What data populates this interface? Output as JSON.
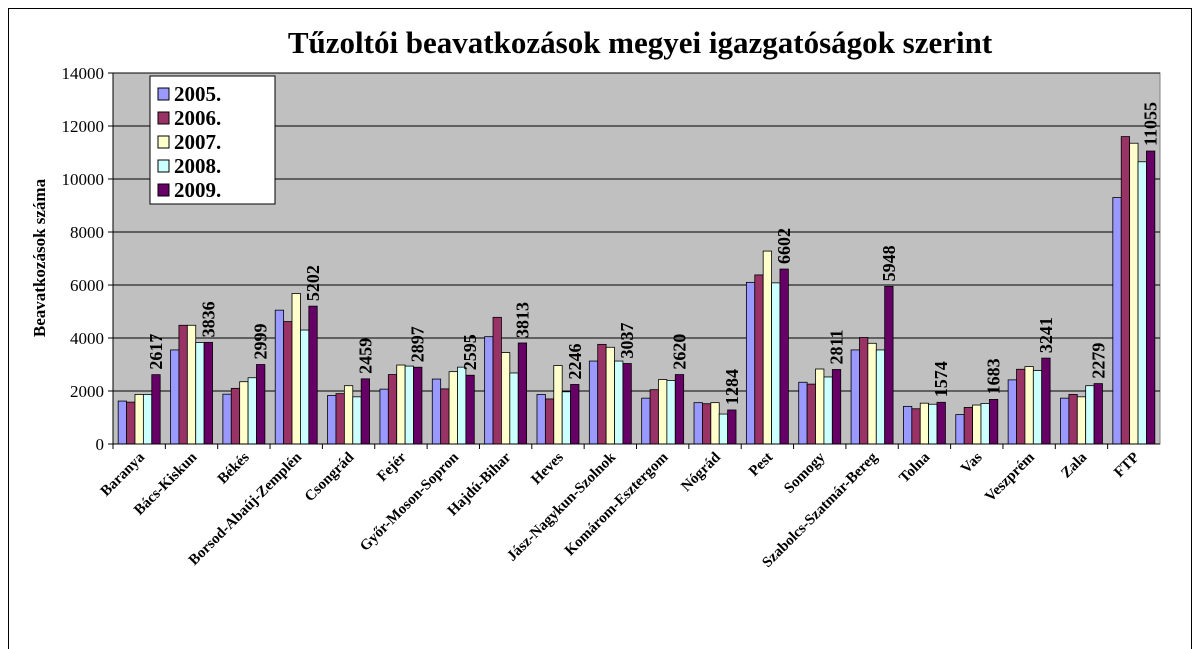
{
  "chart_data": {
    "type": "bar",
    "title": "Tűzoltói beavatkozások megyei igazgatóságok szerint",
    "y_label": "Beavatkozások száma",
    "categories": [
      "Baranya",
      "Bács-Kiskun",
      "Békés",
      "Borsod-Abaúj-Zemplén",
      "Csongrád",
      "Fejér",
      "Győr-Moson-Sopron",
      "Hajdú-Bihar",
      "Heves",
      "Jász-Nagykun-Szolnok",
      "Komárom-Esztergom",
      "Nógrád",
      "Pest",
      "Somogy",
      "Szabolcs-Szatmár-Bereg",
      "Tolna",
      "Vas",
      "Veszprém",
      "Zala",
      "FTP"
    ],
    "series": [
      {
        "name": "2005.",
        "color": "#9999ff",
        "values": [
          1620,
          3550,
          1880,
          5050,
          1830,
          2070,
          2450,
          4050,
          1870,
          3130,
          1730,
          1560,
          6100,
          2330,
          3550,
          1420,
          1110,
          2420,
          1730,
          9300
        ]
      },
      {
        "name": "2006.",
        "color": "#993366",
        "values": [
          1580,
          4480,
          2100,
          4620,
          1900,
          2620,
          2080,
          4780,
          1700,
          3760,
          2050,
          1520,
          6380,
          2260,
          4020,
          1330,
          1380,
          2820,
          1870,
          11600
        ]
      },
      {
        "name": "2007.",
        "color": "#ffffcc",
        "values": [
          1870,
          4480,
          2350,
          5680,
          2200,
          2980,
          2730,
          3450,
          2960,
          3650,
          2430,
          1560,
          7280,
          2830,
          3800,
          1540,
          1470,
          2920,
          1780,
          11350
        ]
      },
      {
        "name": "2008.",
        "color": "#ccffff",
        "values": [
          1870,
          3830,
          2500,
          4300,
          1780,
          2940,
          2900,
          2680,
          1970,
          3130,
          2400,
          1130,
          6080,
          2530,
          3550,
          1500,
          1530,
          2770,
          2200,
          10650
        ]
      },
      {
        "name": "2009.",
        "color": "#660066",
        "data_labels": true,
        "values": [
          2617,
          3836,
          2999,
          5202,
          2459,
          2897,
          2595,
          3813,
          2246,
          3037,
          2620,
          1284,
          6602,
          2811,
          5948,
          1574,
          1683,
          3241,
          2279,
          11055
        ]
      }
    ],
    "ylim": [
      0,
      14000
    ],
    "yticks": [
      0,
      2000,
      4000,
      6000,
      8000,
      10000,
      12000,
      14000
    ],
    "grid": true,
    "plot_background": "#c0c0c0",
    "legend": "top-left"
  }
}
